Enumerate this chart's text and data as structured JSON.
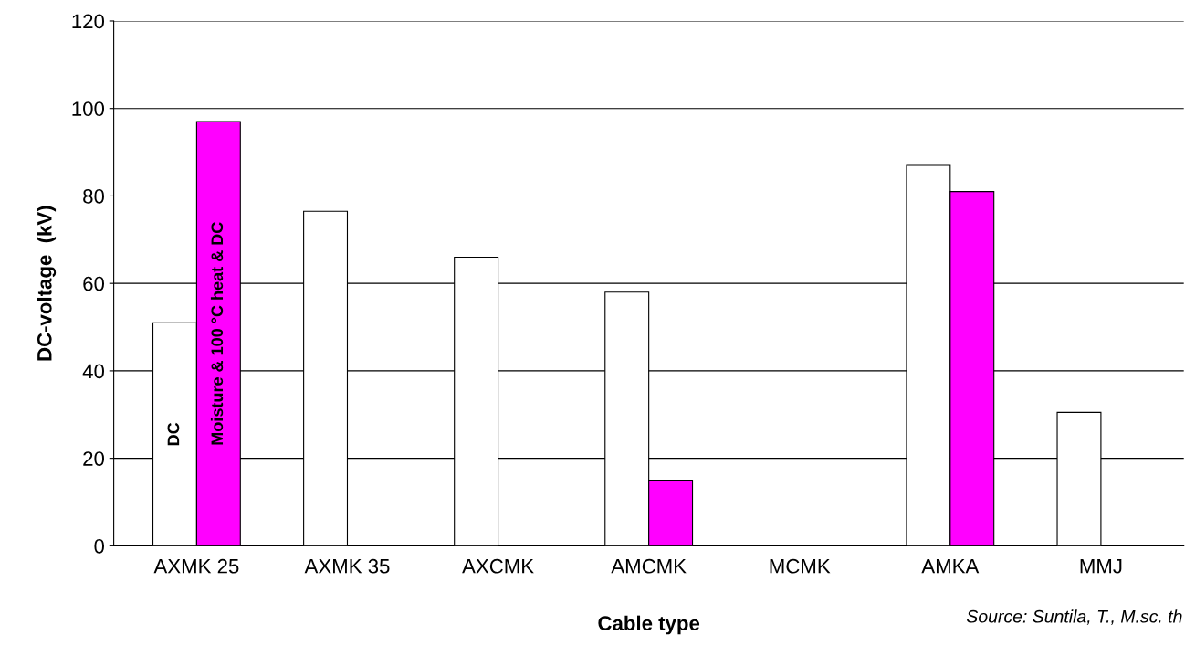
{
  "chart_data": {
    "type": "bar",
    "xlabel": "Cable type",
    "ylabel": "DC-voltage  (kV)",
    "categories": [
      "AXMK 25",
      "AXMK 35",
      "AXCMK",
      "AMCMK",
      "MCMK",
      "AMKA",
      "MMJ"
    ],
    "series": [
      {
        "name": "DC",
        "color": "#ffffff",
        "values": [
          51,
          76.5,
          66,
          58,
          null,
          87,
          30.5
        ]
      },
      {
        "name": "Moisture & 100 °C heat & DC",
        "color": "#ff00ff",
        "values": [
          97,
          null,
          null,
          15,
          null,
          81,
          null
        ]
      }
    ],
    "ylim": [
      0,
      120
    ],
    "yticks": [
      0,
      20,
      40,
      60,
      80,
      100,
      120
    ],
    "grid": "y",
    "legend": false,
    "annotations": [
      "Source: Suntila, T., M.sc. th"
    ]
  }
}
